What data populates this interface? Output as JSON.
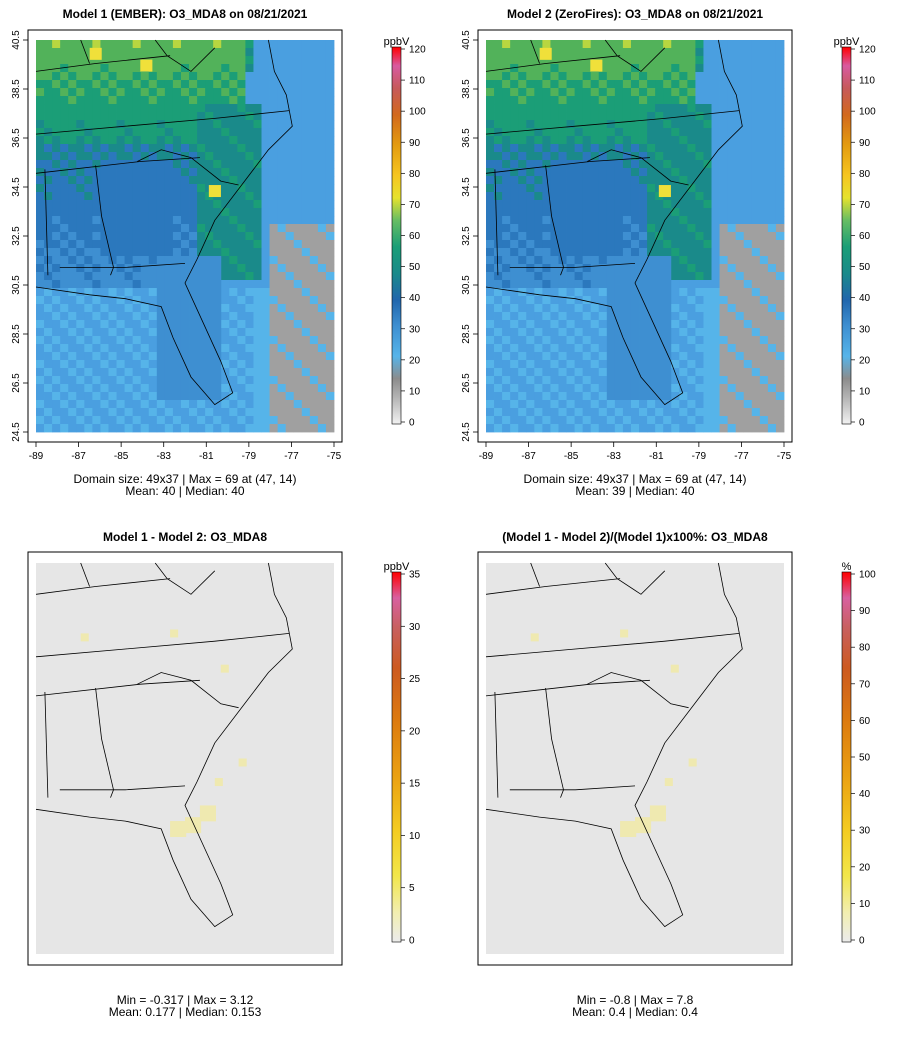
{
  "figure": {
    "colors": {
      "frame": "#000000",
      "land_bg": "#e6e6e6",
      "border": "#000000"
    }
  },
  "chart_data": [
    {
      "type": "heatmap",
      "title": "Model 1 (EMBER): O3_MDA8 on 08/21/2021",
      "xlabel": "",
      "ylabel": "",
      "x_ticks": [
        "-89",
        "-87",
        "-85",
        "-83",
        "-81",
        "-79",
        "-77",
        "-75"
      ],
      "y_ticks": [
        "24.5",
        "26.5",
        "28.5",
        "30.5",
        "32.5",
        "34.5",
        "36.5",
        "38.5",
        "40.5"
      ],
      "xlim": [
        -89,
        -75
      ],
      "ylim": [
        24.5,
        40.5
      ],
      "colorbar": {
        "unit": "ppbV",
        "ticks": [
          "0",
          "10",
          "20",
          "30",
          "40",
          "50",
          "60",
          "70",
          "80",
          "90",
          "100",
          "110",
          "120"
        ],
        "range": [
          0,
          120
        ]
      },
      "footer": [
        "Domain size: 49x37 | Max = 69 at (47, 14)",
        "Mean: 40 |  Median: 40"
      ],
      "max": 69,
      "mean": 40,
      "median": 40,
      "grid": false
    },
    {
      "type": "heatmap",
      "title": "Model 2 (ZeroFires): O3_MDA8 on 08/21/2021",
      "xlabel": "",
      "ylabel": "",
      "x_ticks": [
        "-89",
        "-87",
        "-85",
        "-83",
        "-81",
        "-79",
        "-77",
        "-75"
      ],
      "y_ticks": [
        "24.5",
        "26.5",
        "28.5",
        "30.5",
        "32.5",
        "34.5",
        "36.5",
        "38.5",
        "40.5"
      ],
      "xlim": [
        -89,
        -75
      ],
      "ylim": [
        24.5,
        40.5
      ],
      "colorbar": {
        "unit": "ppbV",
        "ticks": [
          "0",
          "10",
          "20",
          "30",
          "40",
          "50",
          "60",
          "70",
          "80",
          "90",
          "100",
          "110",
          "120"
        ],
        "range": [
          0,
          120
        ]
      },
      "footer": [
        "Domain size: 49x37 | Max = 69 at (47, 14)",
        "Mean: 39 |  Median: 40"
      ],
      "max": 69,
      "mean": 39,
      "median": 40,
      "grid": false
    },
    {
      "type": "heatmap",
      "title": "Model 1 - Model 2: O3_MDA8",
      "xlabel": "",
      "ylabel": "",
      "colorbar": {
        "unit": "ppbV",
        "ticks": [
          "0",
          "5",
          "10",
          "15",
          "20",
          "25",
          "30",
          "35"
        ],
        "range": [
          0,
          35
        ]
      },
      "footer": [
        "Min = -0.317 | Max = 3.12",
        "Mean: 0.177 |  Median: 0.153"
      ],
      "min": -0.317,
      "max": 3.12,
      "mean": 0.177,
      "median": 0.153,
      "grid": false
    },
    {
      "type": "heatmap",
      "title": "(Model 1 - Model 2)/(Model 1)x100%: O3_MDA8",
      "xlabel": "",
      "ylabel": "",
      "colorbar": {
        "unit": "%",
        "ticks": [
          "0",
          "10",
          "20",
          "30",
          "40",
          "50",
          "60",
          "70",
          "80",
          "90",
          "100"
        ],
        "range": [
          0,
          100
        ]
      },
      "footer": [
        "Min = -0.8 | Max = 7.8",
        "Mean: 0.4 |  Median: 0.4"
      ],
      "min": -0.8,
      "max": 7.8,
      "mean": 0.4,
      "median": 0.4,
      "grid": false
    }
  ]
}
